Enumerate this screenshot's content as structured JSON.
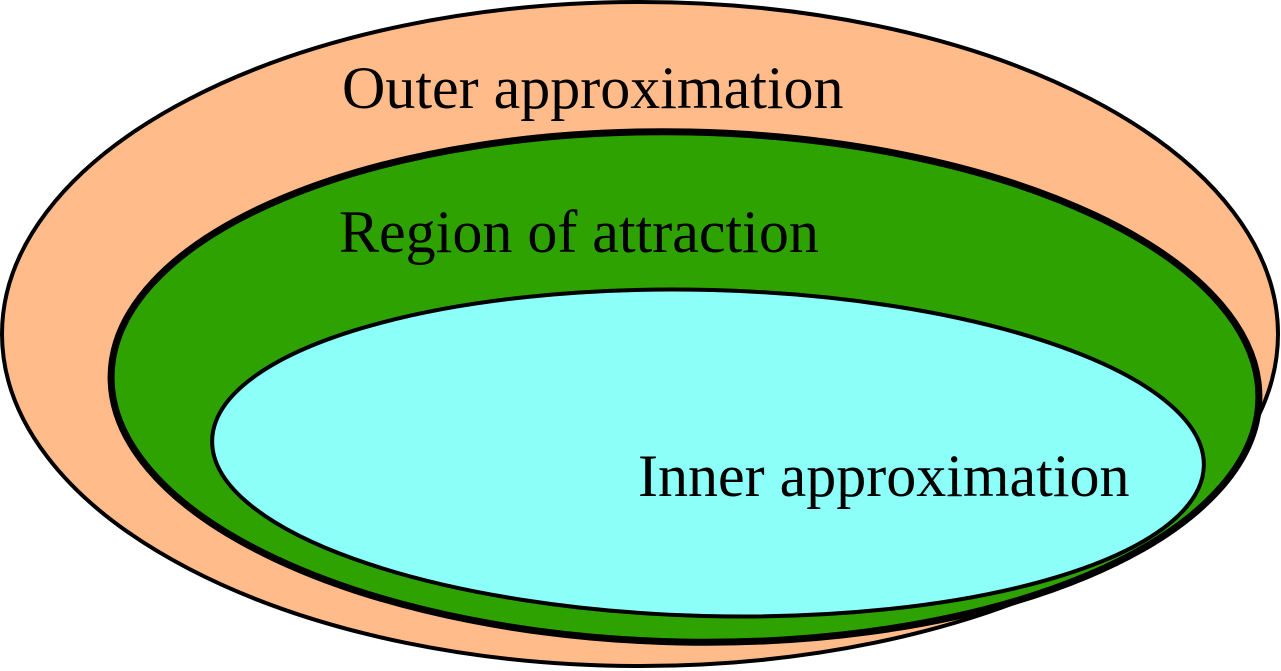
{
  "regions": {
    "outer": {
      "label": "Outer approximation",
      "fill": "#FFBC8A"
    },
    "attraction": {
      "label": "Region of attraction",
      "fill": "#2EA200"
    },
    "inner": {
      "label": "Inner approximation",
      "fill": "#8CFFF9"
    }
  },
  "stroke_color": "#000000"
}
